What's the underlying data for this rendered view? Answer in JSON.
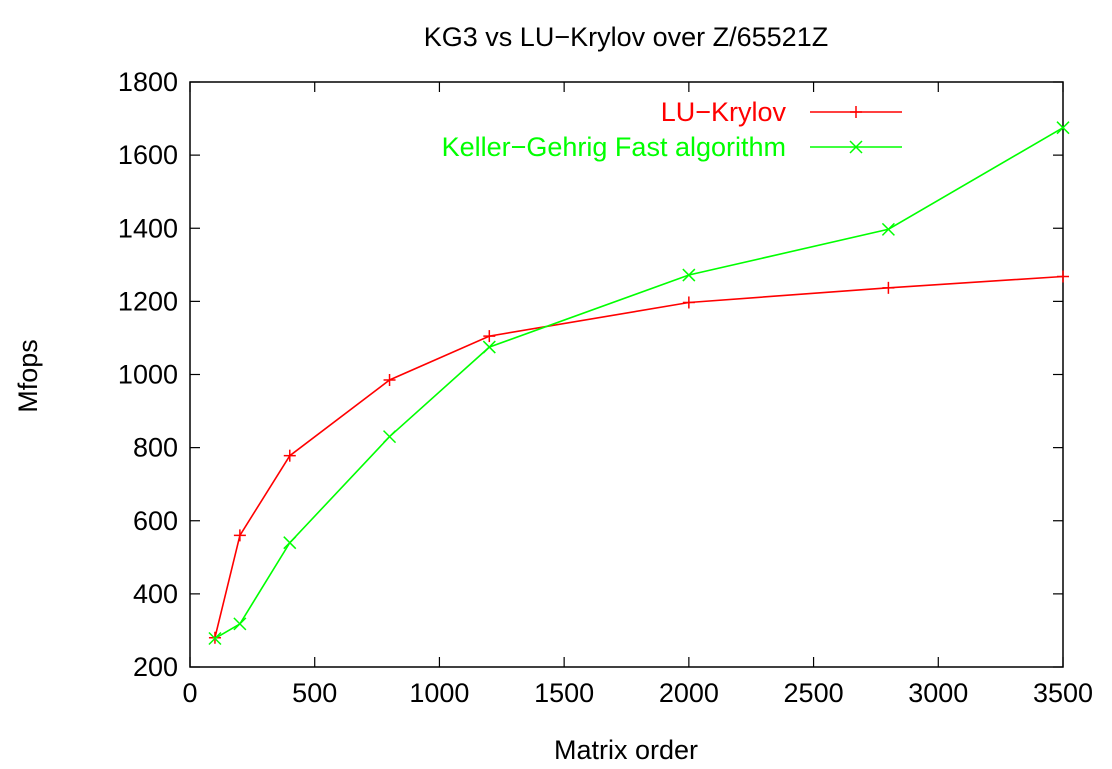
{
  "chart_data": {
    "type": "line",
    "title": "KG3 vs LU−Krylov over Z/65521Z",
    "xlabel": "Matrix order",
    "ylabel": "Mfops",
    "xlim": [
      0,
      3500
    ],
    "ylim": [
      200,
      1800
    ],
    "xticks": [
      0,
      500,
      1000,
      1500,
      2000,
      2500,
      3000,
      3500
    ],
    "yticks": [
      200,
      400,
      600,
      800,
      1000,
      1200,
      1400,
      1600,
      1800
    ],
    "grid": false,
    "legend_position": "top-right",
    "series": [
      {
        "name": "LU−Krylov",
        "color": "#ff0000",
        "marker": "plus",
        "x": [
          100,
          200,
          400,
          800,
          1200,
          2000,
          2800,
          3500
        ],
        "y": [
          280,
          560,
          778,
          985,
          1105,
          1197,
          1237,
          1268
        ]
      },
      {
        "name": "Keller−Gehrig Fast algorithm",
        "color": "#00ff00",
        "marker": "cross",
        "x": [
          100,
          200,
          400,
          800,
          1200,
          2000,
          2800,
          3500
        ],
        "y": [
          278,
          318,
          540,
          830,
          1075,
          1272,
          1397,
          1675
        ]
      }
    ]
  }
}
